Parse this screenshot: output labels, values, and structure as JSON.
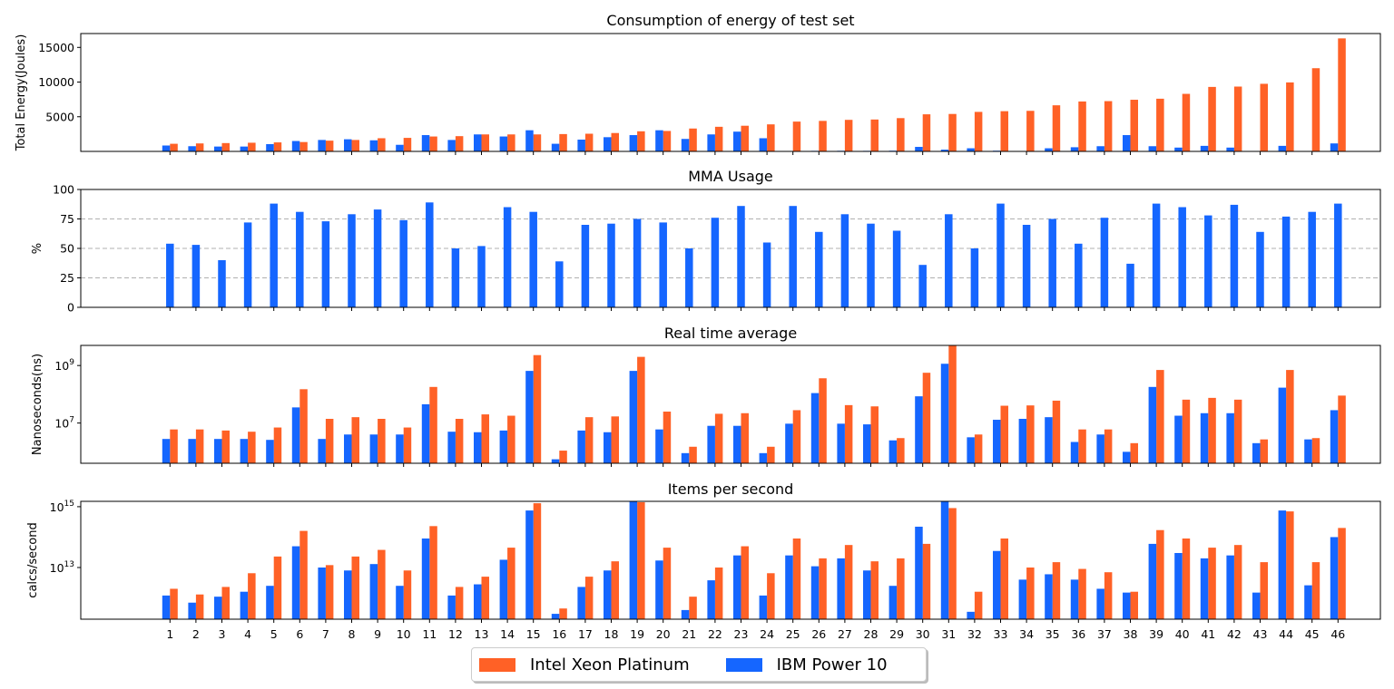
{
  "colors": {
    "intel": "#ff6126",
    "ibm": "#1566ff",
    "grid": "#b0b0b0"
  },
  "legend": {
    "items": [
      {
        "label": "Intel Xeon Platinum"
      },
      {
        "label": "IBM Power 10"
      }
    ]
  },
  "chart_data": [
    {
      "type": "bar",
      "title": "Consumption of energy of test set",
      "ylabel": "Total Energy(Joules)",
      "yscale": "linear",
      "ylim": [
        0,
        17000
      ],
      "yticks": [
        5000,
        10000,
        15000
      ],
      "yticklabels": [
        "5000",
        "10000",
        "15000"
      ],
      "grid": false,
      "categories": [
        "1",
        "2",
        "3",
        "4",
        "5",
        "6",
        "7",
        "8",
        "9",
        "10",
        "11",
        "12",
        "13",
        "14",
        "15",
        "16",
        "17",
        "18",
        "19",
        "20",
        "21",
        "22",
        "23",
        "24",
        "25",
        "26",
        "27",
        "28",
        "29",
        "30",
        "31",
        "32",
        "33",
        "34",
        "35",
        "36",
        "37",
        "38",
        "39",
        "40",
        "41",
        "42",
        "43",
        "44",
        "45",
        "46"
      ],
      "series": [
        {
          "name": "Intel Xeon Platinum",
          "values": [
            1100,
            1150,
            1200,
            1250,
            1300,
            1350,
            1550,
            1650,
            1900,
            1950,
            2150,
            2200,
            2450,
            2450,
            2450,
            2500,
            2550,
            2650,
            2900,
            2950,
            3300,
            3550,
            3700,
            3900,
            4300,
            4400,
            4550,
            4600,
            4800,
            5350,
            5400,
            5700,
            5800,
            5850,
            6650,
            7200,
            7250,
            7450,
            7600,
            8300,
            9300,
            9350,
            9750,
            9950,
            12000,
            16300
          ]
        },
        {
          "name": "IBM Power 10",
          "values": [
            850,
            750,
            700,
            700,
            1050,
            1500,
            1650,
            1750,
            1600,
            950,
            2350,
            1650,
            2450,
            2150,
            3050,
            1100,
            1700,
            2050,
            2350,
            3050,
            1800,
            2450,
            2850,
            1900,
            50,
            80,
            90,
            80,
            100,
            650,
            250,
            450,
            100,
            50,
            450,
            600,
            750,
            2350,
            750,
            550,
            800,
            550,
            50,
            800,
            50,
            1150
          ]
        }
      ]
    },
    {
      "type": "bar",
      "title": "MMA Usage",
      "ylabel": "%",
      "yscale": "linear",
      "ylim": [
        0,
        100
      ],
      "yticks": [
        0,
        25,
        50,
        75,
        100
      ],
      "yticklabels": [
        "0",
        "25",
        "50",
        "75",
        "100"
      ],
      "grid": "dashed horizontal",
      "categories": [
        "1",
        "2",
        "3",
        "4",
        "5",
        "6",
        "7",
        "8",
        "9",
        "10",
        "11",
        "12",
        "13",
        "14",
        "15",
        "16",
        "17",
        "18",
        "19",
        "20",
        "21",
        "22",
        "23",
        "24",
        "25",
        "26",
        "27",
        "28",
        "29",
        "30",
        "31",
        "32",
        "33",
        "34",
        "35",
        "36",
        "37",
        "38",
        "39",
        "40",
        "41",
        "42",
        "43",
        "44",
        "45",
        "46"
      ],
      "series": [
        {
          "name": "IBM Power 10",
          "values": [
            54,
            53,
            40,
            72,
            88,
            81,
            73,
            79,
            83,
            74,
            89,
            50,
            52,
            85,
            81,
            39,
            70,
            71,
            75,
            72,
            50,
            76,
            86,
            55,
            86,
            64,
            79,
            71,
            65,
            36,
            79,
            50,
            88,
            70,
            75,
            54,
            76,
            37,
            88,
            85,
            78,
            87,
            64,
            77,
            81,
            88
          ]
        }
      ]
    },
    {
      "type": "bar",
      "title": "Real time average",
      "ylabel": "Nanoseconds(ns)",
      "yscale": "log",
      "ylim": [
        400000,
        5000000000
      ],
      "yticks": [
        10000000,
        1000000000
      ],
      "yticklabels": [
        "10^7",
        "10^9"
      ],
      "grid": false,
      "categories": [
        "1",
        "2",
        "3",
        "4",
        "5",
        "6",
        "7",
        "8",
        "9",
        "10",
        "11",
        "12",
        "13",
        "14",
        "15",
        "16",
        "17",
        "18",
        "19",
        "20",
        "21",
        "22",
        "23",
        "24",
        "25",
        "26",
        "27",
        "28",
        "29",
        "30",
        "31",
        "32",
        "33",
        "34",
        "35",
        "36",
        "37",
        "38",
        "39",
        "40",
        "41",
        "42",
        "43",
        "44",
        "45",
        "46"
      ],
      "series": [
        {
          "name": "Intel Xeon Platinum",
          "values": [
            6000000,
            6000000,
            5500000,
            5000000,
            7000000,
            150000000,
            14000000,
            16000000,
            14000000,
            7000000,
            180000000,
            14000000,
            20000000,
            18000000,
            2300000000,
            1100000,
            16000000,
            17000000,
            2000000000,
            25000000,
            1500000,
            21000000,
            22000000,
            1500000,
            28000000,
            360000000,
            42000000,
            38000000,
            3000000,
            560000000,
            5000000000,
            4000000,
            40000000,
            41000000,
            60000000,
            6000000,
            6000000,
            2000000,
            700000000,
            65000000,
            75000000,
            65000000,
            2700000,
            700000000,
            3000000,
            90000000
          ]
        },
        {
          "name": "IBM Power 10",
          "values": [
            2800000,
            2800000,
            2800000,
            2800000,
            2600000,
            35000000,
            2800000,
            4000000,
            4000000,
            4000000,
            45000000,
            5000000,
            4800000,
            5500000,
            650000000,
            550000,
            5500000,
            4800000,
            650000000,
            6000000,
            900000,
            8000000,
            8000000,
            900000,
            9500000,
            110000000,
            9500000,
            9000000,
            2500000,
            85000000,
            1150000000,
            3200000,
            13000000,
            14000000,
            16000000,
            2200000,
            4000000,
            1000000,
            180000000,
            18000000,
            22000000,
            22000000,
            2000000,
            170000000,
            2700000,
            28000000
          ]
        }
      ]
    },
    {
      "type": "bar",
      "title": "Items per second",
      "ylabel": "calcs/second",
      "yscale": "log",
      "ylim": [
        200000000000,
        1500000000000000
      ],
      "yticks": [
        10000000000000,
        1000000000000000
      ],
      "yticklabels": [
        "10^13",
        "10^15"
      ],
      "grid": false,
      "categories": [
        "1",
        "2",
        "3",
        "4",
        "5",
        "6",
        "7",
        "8",
        "9",
        "10",
        "11",
        "12",
        "13",
        "14",
        "15",
        "16",
        "17",
        "18",
        "19",
        "20",
        "21",
        "22",
        "23",
        "24",
        "25",
        "26",
        "27",
        "28",
        "29",
        "30",
        "31",
        "32",
        "33",
        "34",
        "35",
        "36",
        "37",
        "38",
        "39",
        "40",
        "41",
        "42",
        "43",
        "44",
        "45",
        "46"
      ],
      "series": [
        {
          "name": "Intel Xeon Platinum",
          "values": [
            2000000000000,
            1300000000000,
            2300000000000,
            6500000000000,
            23000000000000,
            160000000000000,
            12000000000000,
            23000000000000,
            38000000000000,
            8000000000000,
            230000000000000,
            2300000000000,
            5000000000000,
            45000000000000,
            1300000000000000,
            450000000000,
            5000000000000,
            16000000000000,
            1400000000000000,
            45000000000000,
            1100000000000,
            10000000000000,
            50000000000000,
            6500000000000,
            90000000000000,
            20000000000000,
            55000000000000,
            16000000000000,
            20000000000000,
            60000000000000,
            900000000000000,
            1600000000000,
            90000000000000,
            10000000000000,
            15000000000000,
            9000000000000,
            7000000000000,
            1600000000000,
            170000000000000,
            90000000000000,
            45000000000000,
            55000000000000,
            15000000000000,
            700000000000000,
            15000000000000,
            200000000000000
          ]
        },
        {
          "name": "IBM Power 10",
          "values": [
            1200000000000,
            700000000000,
            1100000000000,
            1600000000000,
            2500000000000,
            50000000000000,
            10000000000000,
            8000000000000,
            13000000000000,
            2500000000000,
            90000000000000,
            1200000000000,
            2800000000000,
            18000000000000,
            750000000000000,
            300000000000,
            2300000000000,
            8000000000000,
            1500000000000000,
            17000000000000,
            400000000000,
            3800000000000,
            25000000000000,
            1200000000000,
            25000000000000,
            11000000000000,
            20000000000000,
            8000000000000,
            2500000000000,
            220000000000000,
            1500000000000000,
            350000000000,
            35000000000000,
            4000000000000,
            6000000000000,
            4000000000000,
            2000000000000,
            1500000000000,
            60000000000000,
            30000000000000,
            20000000000000,
            25000000000000,
            1500000000000,
            750000000000000,
            2600000000000,
            100000000000000
          ]
        }
      ]
    }
  ]
}
